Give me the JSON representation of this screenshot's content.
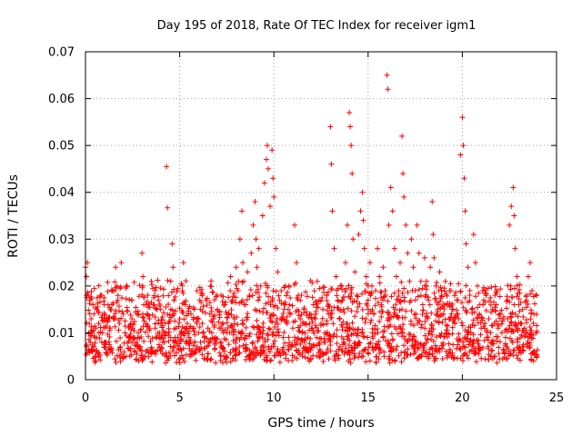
{
  "chart_data": {
    "type": "scatter",
    "title": "Day 195 of 2018, Rate Of TEC Index for receiver igm1",
    "xlabel": "GPS time / hours",
    "ylabel": "ROTI / TECUs",
    "xlim": [
      0,
      25
    ],
    "ylim": [
      0,
      0.07
    ],
    "x_ticks": [
      0,
      5,
      10,
      15,
      20,
      25
    ],
    "x_tick_labels": [
      "0",
      "5",
      "10",
      "15",
      "20",
      "25"
    ],
    "y_ticks": [
      0,
      0.01,
      0.02,
      0.03,
      0.04,
      0.05,
      0.06,
      0.07
    ],
    "y_tick_labels": [
      "0",
      "0.01",
      "0.02",
      "0.03",
      "0.04",
      "0.05",
      "0.06",
      "0.07"
    ],
    "grid": true,
    "marker": "plus",
    "color": "#ff0000",
    "series": [
      {
        "name": "ROTI",
        "points": [
          [
            0.0,
            0.024
          ],
          [
            0.05,
            0.022
          ],
          [
            0.1,
            0.025
          ],
          [
            0.15,
            0.018
          ],
          [
            0.2,
            0.012
          ],
          [
            0.25,
            0.008
          ],
          [
            0.3,
            0.013
          ],
          [
            0.35,
            0.01
          ],
          [
            0.4,
            0.016
          ],
          [
            0.45,
            0.014
          ],
          [
            0.5,
            0.009
          ],
          [
            0.55,
            0.011
          ],
          [
            0.6,
            0.015
          ],
          [
            0.7,
            0.012
          ],
          [
            0.8,
            0.018
          ],
          [
            0.9,
            0.01
          ],
          [
            1.0,
            0.013
          ],
          [
            1.1,
            0.008
          ],
          [
            1.2,
            0.016
          ],
          [
            1.3,
            0.011
          ],
          [
            1.4,
            0.019
          ],
          [
            1.5,
            0.013
          ],
          [
            1.6,
            0.024
          ],
          [
            1.7,
            0.017
          ],
          [
            1.8,
            0.012
          ],
          [
            1.9,
            0.025
          ],
          [
            2.0,
            0.014
          ],
          [
            2.1,
            0.01
          ],
          [
            2.2,
            0.02
          ],
          [
            2.3,
            0.009
          ],
          [
            2.4,
            0.012
          ],
          [
            2.5,
            0.011
          ],
          [
            2.6,
            0.009
          ],
          [
            2.7,
            0.008
          ],
          [
            2.8,
            0.01
          ],
          [
            2.9,
            0.007
          ],
          [
            3.0,
            0.027
          ],
          [
            3.05,
            0.022
          ],
          [
            3.1,
            0.016
          ],
          [
            3.2,
            0.012
          ],
          [
            3.3,
            0.018
          ],
          [
            3.4,
            0.013
          ],
          [
            3.5,
            0.021
          ],
          [
            3.6,
            0.016
          ],
          [
            3.7,
            0.011
          ],
          [
            3.8,
            0.015
          ],
          [
            3.9,
            0.009
          ],
          [
            4.0,
            0.012
          ],
          [
            4.1,
            0.008
          ],
          [
            4.2,
            0.01
          ],
          [
            4.3,
            0.0455
          ],
          [
            4.35,
            0.0367
          ],
          [
            4.4,
            0.012
          ],
          [
            4.5,
            0.009
          ],
          [
            4.6,
            0.029
          ],
          [
            4.65,
            0.024
          ],
          [
            4.7,
            0.017
          ],
          [
            4.8,
            0.011
          ],
          [
            4.9,
            0.009
          ],
          [
            5.0,
            0.013
          ],
          [
            5.1,
            0.01
          ],
          [
            5.2,
            0.025
          ],
          [
            5.3,
            0.016
          ],
          [
            5.4,
            0.012
          ],
          [
            5.5,
            0.009
          ],
          [
            5.6,
            0.014
          ],
          [
            5.7,
            0.011
          ],
          [
            5.8,
            0.008
          ],
          [
            5.9,
            0.013
          ],
          [
            6.0,
            0.01
          ],
          [
            6.1,
            0.015
          ],
          [
            6.2,
            0.012
          ],
          [
            6.3,
            0.009
          ],
          [
            6.4,
            0.017
          ],
          [
            6.5,
            0.011
          ],
          [
            6.6,
            0.014
          ],
          [
            6.7,
            0.01
          ],
          [
            6.8,
            0.013
          ],
          [
            6.9,
            0.009
          ],
          [
            7.0,
            0.015
          ],
          [
            7.1,
            0.011
          ],
          [
            7.2,
            0.018
          ],
          [
            7.3,
            0.012
          ],
          [
            7.4,
            0.016
          ],
          [
            7.5,
            0.01
          ],
          [
            7.6,
            0.014
          ],
          [
            7.7,
            0.022
          ],
          [
            7.8,
            0.017
          ],
          [
            7.9,
            0.013
          ],
          [
            8.0,
            0.024
          ],
          [
            8.1,
            0.019
          ],
          [
            8.2,
            0.03
          ],
          [
            8.3,
            0.036
          ],
          [
            8.35,
            0.025
          ],
          [
            8.4,
            0.021
          ],
          [
            8.5,
            0.016
          ],
          [
            8.6,
            0.023
          ],
          [
            8.7,
            0.018
          ],
          [
            8.8,
            0.027
          ],
          [
            8.9,
            0.033
          ],
          [
            9.0,
            0.038
          ],
          [
            9.05,
            0.03
          ],
          [
            9.1,
            0.024
          ],
          [
            9.2,
            0.028
          ],
          [
            9.3,
            0.02
          ],
          [
            9.4,
            0.035
          ],
          [
            9.5,
            0.042
          ],
          [
            9.6,
            0.047
          ],
          [
            9.65,
            0.05
          ],
          [
            9.7,
            0.045
          ],
          [
            9.8,
            0.037
          ],
          [
            9.9,
            0.049
          ],
          [
            9.95,
            0.043
          ],
          [
            10.0,
            0.039
          ],
          [
            10.1,
            0.028
          ],
          [
            10.2,
            0.023
          ],
          [
            10.3,
            0.017
          ],
          [
            10.4,
            0.013
          ],
          [
            10.5,
            0.009
          ],
          [
            10.6,
            0.016
          ],
          [
            10.7,
            0.012
          ],
          [
            10.8,
            0.02
          ],
          [
            10.9,
            0.014
          ],
          [
            11.0,
            0.011
          ],
          [
            11.1,
            0.033
          ],
          [
            11.2,
            0.025
          ],
          [
            11.3,
            0.018
          ],
          [
            11.4,
            0.013
          ],
          [
            11.5,
            0.01
          ],
          [
            11.6,
            0.015
          ],
          [
            11.7,
            0.012
          ],
          [
            11.8,
            0.009
          ],
          [
            11.9,
            0.014
          ],
          [
            12.0,
            0.011
          ],
          [
            12.1,
            0.016
          ],
          [
            12.2,
            0.013
          ],
          [
            12.3,
            0.021
          ],
          [
            12.4,
            0.017
          ],
          [
            12.5,
            0.012
          ],
          [
            12.6,
            0.015
          ],
          [
            12.7,
            0.01
          ],
          [
            12.8,
            0.018
          ],
          [
            12.9,
            0.014
          ],
          [
            13.0,
            0.054
          ],
          [
            13.05,
            0.046
          ],
          [
            13.1,
            0.036
          ],
          [
            13.2,
            0.028
          ],
          [
            13.3,
            0.022
          ],
          [
            13.4,
            0.017
          ],
          [
            13.5,
            0.013
          ],
          [
            13.6,
            0.02
          ],
          [
            13.7,
            0.015
          ],
          [
            13.8,
            0.025
          ],
          [
            13.9,
            0.033
          ],
          [
            14.0,
            0.057
          ],
          [
            14.05,
            0.054
          ],
          [
            14.1,
            0.05
          ],
          [
            14.15,
            0.044
          ],
          [
            14.2,
            0.03
          ],
          [
            14.3,
            0.023
          ],
          [
            14.4,
            0.018
          ],
          [
            14.5,
            0.031
          ],
          [
            14.6,
            0.036
          ],
          [
            14.7,
            0.04
          ],
          [
            14.75,
            0.034
          ],
          [
            14.8,
            0.028
          ],
          [
            14.9,
            0.022
          ],
          [
            15.0,
            0.017
          ],
          [
            15.1,
            0.025
          ],
          [
            15.2,
            0.02
          ],
          [
            15.3,
            0.014
          ],
          [
            15.4,
            0.019
          ],
          [
            15.5,
            0.028
          ],
          [
            15.6,
            0.022
          ],
          [
            15.7,
            0.016
          ],
          [
            15.8,
            0.024
          ],
          [
            15.9,
            0.019
          ],
          [
            16.0,
            0.065
          ],
          [
            16.05,
            0.062
          ],
          [
            16.1,
            0.033
          ],
          [
            16.2,
            0.041
          ],
          [
            16.3,
            0.036
          ],
          [
            16.4,
            0.028
          ],
          [
            16.5,
            0.022
          ],
          [
            16.6,
            0.017
          ],
          [
            16.7,
            0.025
          ],
          [
            16.8,
            0.052
          ],
          [
            16.85,
            0.044
          ],
          [
            16.9,
            0.039
          ],
          [
            17.0,
            0.033
          ],
          [
            17.1,
            0.027
          ],
          [
            17.2,
            0.021
          ],
          [
            17.3,
            0.03
          ],
          [
            17.4,
            0.024
          ],
          [
            17.5,
            0.019
          ],
          [
            17.6,
            0.033
          ],
          [
            17.7,
            0.027
          ],
          [
            17.8,
            0.021
          ],
          [
            17.9,
            0.016
          ],
          [
            18.0,
            0.026
          ],
          [
            18.1,
            0.021
          ],
          [
            18.2,
            0.017
          ],
          [
            18.3,
            0.024
          ],
          [
            18.4,
            0.038
          ],
          [
            18.45,
            0.031
          ],
          [
            18.5,
            0.026
          ],
          [
            18.6,
            0.02
          ],
          [
            18.7,
            0.015
          ],
          [
            18.8,
            0.023
          ],
          [
            18.9,
            0.018
          ],
          [
            19.0,
            0.014
          ],
          [
            19.1,
            0.021
          ],
          [
            19.2,
            0.016
          ],
          [
            19.3,
            0.013
          ],
          [
            19.4,
            0.019
          ],
          [
            19.5,
            0.015
          ],
          [
            19.6,
            0.012
          ],
          [
            19.7,
            0.017
          ],
          [
            19.8,
            0.013
          ],
          [
            19.9,
            0.048
          ],
          [
            20.0,
            0.056
          ],
          [
            20.05,
            0.05
          ],
          [
            20.1,
            0.043
          ],
          [
            20.15,
            0.036
          ],
          [
            20.2,
            0.029
          ],
          [
            20.3,
            0.024
          ],
          [
            20.4,
            0.019
          ],
          [
            20.5,
            0.015
          ],
          [
            20.6,
            0.031
          ],
          [
            20.7,
            0.025
          ],
          [
            20.8,
            0.02
          ],
          [
            20.9,
            0.014
          ],
          [
            21.0,
            0.011
          ],
          [
            21.1,
            0.016
          ],
          [
            21.2,
            0.012
          ],
          [
            21.3,
            0.009
          ],
          [
            21.4,
            0.013
          ],
          [
            21.5,
            0.01
          ],
          [
            21.6,
            0.015
          ],
          [
            21.7,
            0.012
          ],
          [
            21.8,
            0.016
          ],
          [
            21.9,
            0.011
          ],
          [
            22.0,
            0.014
          ],
          [
            22.1,
            0.01
          ],
          [
            22.2,
            0.013
          ],
          [
            22.3,
            0.009
          ],
          [
            22.4,
            0.017
          ],
          [
            22.5,
            0.033
          ],
          [
            22.6,
            0.037
          ],
          [
            22.7,
            0.041
          ],
          [
            22.75,
            0.035
          ],
          [
            22.8,
            0.028
          ],
          [
            22.9,
            0.022
          ],
          [
            23.0,
            0.016
          ],
          [
            23.1,
            0.012
          ],
          [
            23.2,
            0.015
          ],
          [
            23.3,
            0.011
          ],
          [
            23.4,
            0.018
          ],
          [
            23.5,
            0.022
          ],
          [
            23.6,
            0.025
          ],
          [
            23.7,
            0.019
          ],
          [
            23.8,
            0.014
          ],
          [
            23.9,
            0.01
          ]
        ]
      }
    ],
    "background_noise": {
      "x_range": [
        0,
        24
      ],
      "y_band": [
        0.005,
        0.02
      ],
      "count": 1800
    }
  }
}
